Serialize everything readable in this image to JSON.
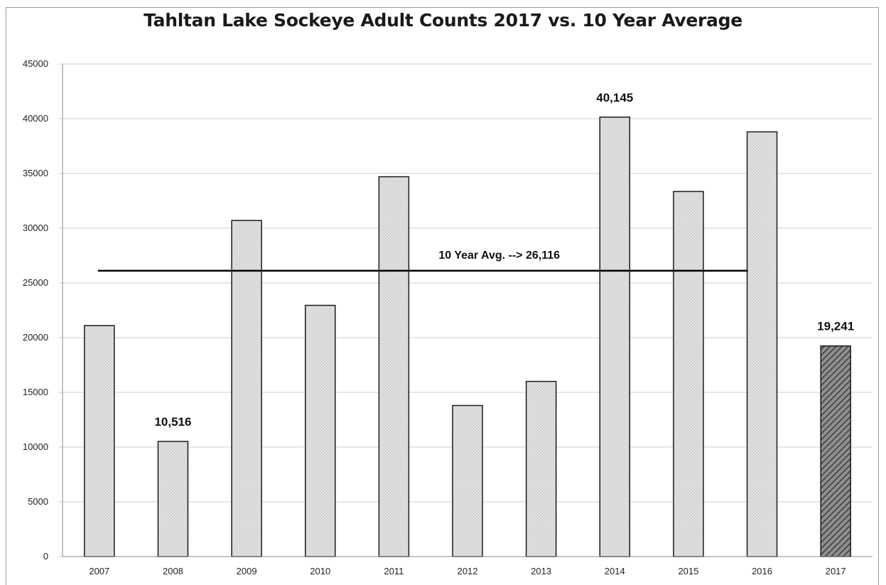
{
  "chart_data": {
    "type": "bar",
    "title": "Tahltan Lake Sockeye Adult Counts 2017 vs. 10 Year Average",
    "categories": [
      "2007",
      "2008",
      "2009",
      "2010",
      "2011",
      "2012",
      "2013",
      "2014",
      "2015",
      "2016",
      "2017"
    ],
    "values": [
      21100,
      10516,
      30700,
      22950,
      34700,
      13800,
      16000,
      40145,
      33350,
      38800,
      19241
    ],
    "data_labels": [
      {
        "category": "2008",
        "text": "10,516"
      },
      {
        "category": "2014",
        "text": "40,145"
      },
      {
        "category": "2017",
        "text": "19,241"
      }
    ],
    "highlight_category": "2017",
    "reference_line": {
      "value": 26116,
      "label": "10 Year Avg. --> 26,116"
    },
    "ylim": [
      0,
      45000
    ],
    "yticks": [
      "0",
      "5000",
      "10000",
      "15000",
      "20000",
      "25000",
      "30000",
      "35000",
      "40000",
      "45000"
    ],
    "grid": true,
    "xlabel": "",
    "ylabel": "",
    "colors": {
      "bar_fill": "#e6e6e6",
      "bar_dot": "#b5b5b5",
      "highlight_fill": "#8e8e8e",
      "highlight_hatch": "#3c3c3c",
      "bar_stroke": "#1a1a1a",
      "grid": "#cfcfcf",
      "avg_line": "#000000"
    }
  }
}
